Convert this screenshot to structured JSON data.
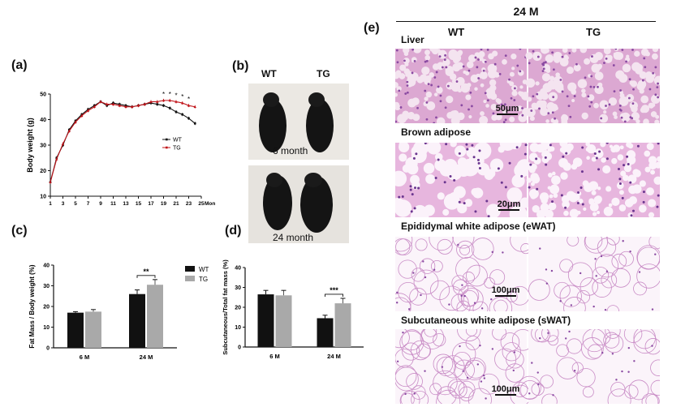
{
  "panels": {
    "a": "(a)",
    "b": "(b)",
    "c": "(c)",
    "d": "(d)",
    "e": "(e)"
  },
  "colors": {
    "wt": "#111111",
    "tg": "#c0141a",
    "tg_bar": "#a9a9a9",
    "he_pink": "#e7b6d8",
    "he_nucleus": "#7a3f9a"
  },
  "chart_data": [
    {
      "id": "a",
      "type": "line",
      "ylabel": "Body weight (g)",
      "xlabel_unit": "Mon",
      "ylim": [
        10,
        50
      ],
      "yticks": [
        10,
        20,
        30,
        40,
        50
      ],
      "xlim": [
        1,
        25
      ],
      "xticks": [
        1,
        3,
        5,
        7,
        9,
        11,
        13,
        15,
        17,
        19,
        21,
        23,
        25
      ],
      "x": [
        1,
        2,
        3,
        4,
        5,
        6,
        7,
        8,
        9,
        10,
        11,
        12,
        13,
        14,
        15,
        16,
        17,
        18,
        19,
        20,
        21,
        22,
        23,
        24
      ],
      "series": [
        {
          "name": "WT",
          "marker": "square",
          "values": [
            15.5,
            25,
            30,
            36,
            39.5,
            42,
            44,
            45.5,
            47,
            45.5,
            46.5,
            46,
            45.5,
            45,
            45.5,
            46,
            46.5,
            46,
            45.5,
            44.5,
            43,
            42,
            40.5,
            38.5
          ]
        },
        {
          "name": "TG",
          "marker": "triangle",
          "values": [
            15.5,
            24.5,
            30.5,
            35.5,
            39,
            41.5,
            43.5,
            45,
            47,
            46,
            46,
            45.5,
            45,
            45,
            45.5,
            46,
            47,
            47,
            47.5,
            47.5,
            47,
            46.5,
            45.5,
            45
          ]
        }
      ],
      "annotations": [
        "*",
        "*",
        "*",
        "*",
        "*"
      ],
      "annotation_x": [
        19,
        20,
        21,
        22,
        23
      ]
    },
    {
      "id": "c",
      "type": "bar",
      "ylabel": "Fat Mass / Body weight (%)",
      "ylim": [
        0,
        40
      ],
      "yticks": [
        0,
        10,
        20,
        30,
        40
      ],
      "categories": [
        "6 M",
        "24 M"
      ],
      "series": [
        {
          "name": "WT",
          "values": [
            17,
            26
          ],
          "errors": [
            0.5,
            2
          ]
        },
        {
          "name": "TG",
          "values": [
            17.5,
            30.5
          ],
          "errors": [
            1,
            2.5
          ]
        }
      ],
      "significance": "**"
    },
    {
      "id": "d",
      "type": "bar",
      "ylabel": "Subcutaneous/Total fat mass (%)",
      "ylim": [
        0,
        40
      ],
      "yticks": [
        0,
        10,
        20,
        30,
        40
      ],
      "categories": [
        "6 M",
        "24 M"
      ],
      "series": [
        {
          "name": "WT",
          "values": [
            26.5,
            14.5
          ],
          "errors": [
            2,
            1.5
          ]
        },
        {
          "name": "TG",
          "values": [
            26,
            22
          ],
          "errors": [
            2.5,
            2.5
          ]
        }
      ],
      "significance": "***"
    }
  ],
  "photos": {
    "wt_label": "WT",
    "tg_label": "TG",
    "top_caption": "6 month",
    "bottom_caption": "24 month"
  },
  "histology": {
    "header": "24 M",
    "col_wt": "WT",
    "col_tg": "TG",
    "rows": [
      {
        "label": "Liver",
        "scale": "50μm"
      },
      {
        "label": "Brown adipose",
        "scale": "20μm"
      },
      {
        "label": "Epididymal white adipose (eWAT)",
        "scale": "100μm"
      },
      {
        "label": "Subcutaneous white adipose (sWAT)",
        "scale": "100μm"
      }
    ]
  }
}
